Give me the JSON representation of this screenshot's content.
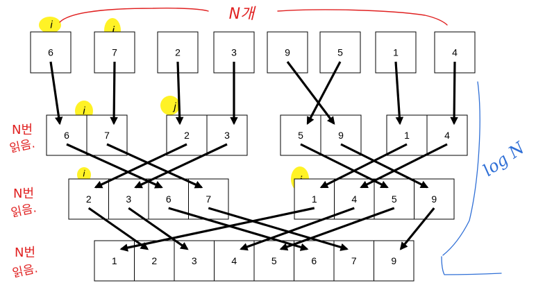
{
  "levels": [
    {
      "groups": [
        [
          "6"
        ],
        [
          "7"
        ],
        [
          "2"
        ],
        [
          "3"
        ],
        [
          "9"
        ],
        [
          "5"
        ],
        [
          "1"
        ],
        [
          "4"
        ]
      ]
    },
    {
      "groups": [
        [
          "6",
          "7"
        ],
        [
          "2",
          "3"
        ],
        [
          "5",
          "9"
        ],
        [
          "1",
          "4"
        ]
      ]
    },
    {
      "groups": [
        [
          "2",
          "3",
          "6",
          "7"
        ],
        [
          "1",
          "4",
          "5",
          "9"
        ]
      ]
    },
    {
      "groups": [
        [
          "1",
          "2",
          "3",
          "4",
          "5",
          "6",
          "7",
          "9"
        ]
      ]
    }
  ],
  "annotations": {
    "top_label": "N개",
    "side_label_line1": "N번",
    "side_label_line2": "읽음.",
    "log_label": "log N",
    "pointer_i": "i",
    "pointer_j": "j"
  }
}
